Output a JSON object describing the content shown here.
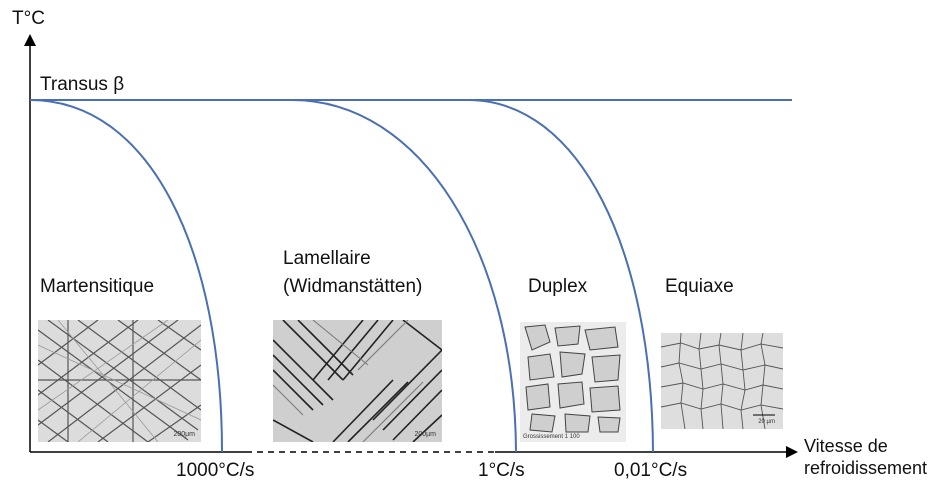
{
  "axes": {
    "y_label": "T°C",
    "x_label_line1": "Vitesse de",
    "x_label_line2": "refroidissement"
  },
  "transus_label": "Transus β",
  "rates": [
    "1000°C/s",
    "1°C/s",
    "0,01°C/s"
  ],
  "regions": {
    "martensitique": "Martensitique",
    "lamellaire_line1": "Lamellaire",
    "lamellaire_line2": "(Widmanstätten)",
    "duplex": "Duplex",
    "equiaxe": "Equiaxe"
  },
  "micrograph_captions": {
    "martensitique": "200µm",
    "lamellaire": "200µm",
    "duplex": "Grossissement 1 100",
    "equiaxe": "20 µm"
  },
  "colors": {
    "curve": "#4a6fb3",
    "axis": "#000000"
  }
}
